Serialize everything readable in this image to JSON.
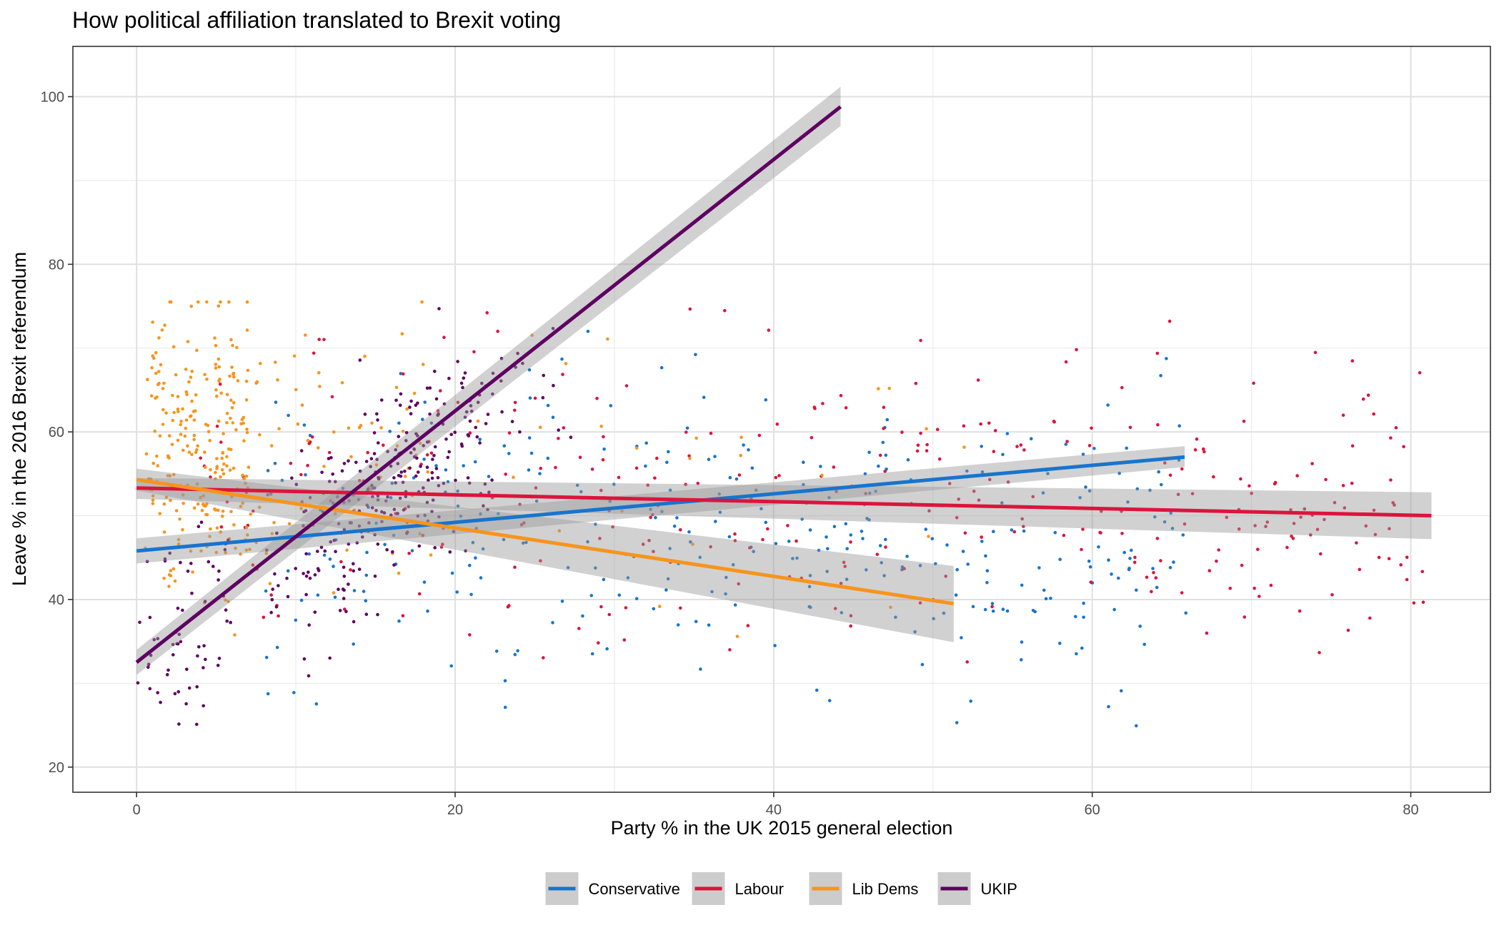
{
  "chart_data": {
    "type": "scatter",
    "title": "How political affiliation translated to Brexit voting",
    "xlabel": "Party % in the UK 2015 general election",
    "ylabel": "Leave % in the 2016 Brexit referendum",
    "xlim": [
      -4,
      85
    ],
    "ylim": [
      17,
      106
    ],
    "x_ticks": [
      0,
      20,
      40,
      60,
      80
    ],
    "y_ticks": [
      20,
      40,
      60,
      80,
      100
    ],
    "grid": true,
    "legend_position": "bottom",
    "series": [
      {
        "name": "Conservative",
        "color": "#1874CD",
        "trend": {
          "x0": 0,
          "y0": 45.8,
          "x1": 65.8,
          "y1": 57.0
        },
        "band": {
          "lo0": 44.3,
          "hi0": 47.3,
          "lo1": 55.8,
          "hi1": 58.3
        },
        "points": {
          "n": 330,
          "xmin": 8,
          "xmax": 66,
          "ymin": 20.5,
          "ymax": 75.5,
          "center": 48
        }
      },
      {
        "name": "Labour",
        "color": "#DC143C",
        "trend": {
          "x0": 0,
          "y0": 53.3,
          "x1": 81.3,
          "y1": 50.0
        },
        "band": {
          "lo0": 52.0,
          "hi0": 54.5,
          "lo1": 47.2,
          "hi1": 52.8
        },
        "points": {
          "n": 330,
          "xmin": 4,
          "xmax": 81,
          "ymin": 20.5,
          "ymax": 75.5,
          "center": 52
        }
      },
      {
        "name": "Lib Dems",
        "color": "#F7941D",
        "trend": {
          "x0": 0,
          "y0": 54.3,
          "x1": 51.3,
          "y1": 39.5
        },
        "band": {
          "lo0": 53.0,
          "hi0": 55.6,
          "lo1": 34.9,
          "hi1": 44.0
        },
        "points": {
          "n": 330,
          "xmin": 0.5,
          "xmax": 52,
          "ymin": 20.5,
          "ymax": 75.5,
          "center": 58
        }
      },
      {
        "name": "UKIP",
        "color": "#5E0062",
        "trend": {
          "x0": 0,
          "y0": 32.5,
          "x1": 44.2,
          "y1": 98.8
        },
        "band": {
          "lo0": 31.0,
          "hi0": 34.0,
          "lo1": 96.5,
          "hi1": 101.2
        },
        "points": {
          "n": 330,
          "xmin": 0,
          "xmax": 34,
          "ymin": 20.5,
          "ymax": 75.5,
          "center": 50
        }
      }
    ]
  }
}
